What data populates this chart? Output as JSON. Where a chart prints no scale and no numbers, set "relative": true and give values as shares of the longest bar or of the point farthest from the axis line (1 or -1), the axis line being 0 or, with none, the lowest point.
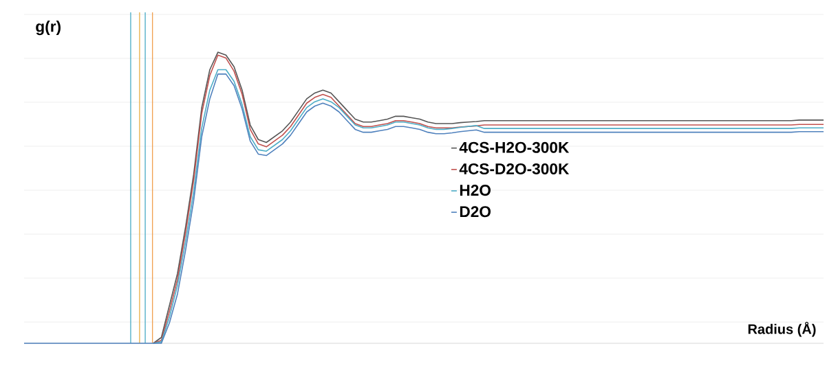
{
  "chart_data": {
    "type": "line",
    "ylabel": "g(r)",
    "xlabel": "Radius (Å)",
    "relative": true,
    "categories": [
      null,
      null,
      null,
      null,
      null,
      null,
      null,
      null,
      null,
      null,
      null,
      null,
      null,
      null,
      null,
      null,
      null,
      null,
      null,
      null,
      null,
      null,
      null,
      null,
      null,
      null,
      null,
      null,
      null,
      null,
      null,
      null,
      null,
      null,
      null,
      null,
      null,
      null,
      null,
      null,
      null,
      null,
      null,
      null,
      null,
      null,
      null,
      null,
      null,
      null,
      null,
      null,
      null,
      null,
      null,
      null,
      null,
      null,
      null,
      null,
      null,
      null,
      null,
      null,
      null,
      null,
      null,
      null,
      null,
      null,
      null,
      null,
      null,
      null,
      null,
      null,
      null,
      null,
      null,
      null,
      null,
      null,
      null,
      null,
      null,
      null,
      null,
      null,
      null,
      null,
      null,
      null,
      null,
      null,
      null,
      null,
      null,
      null,
      null,
      null
    ],
    "series": [
      {
        "name": "4CS-H2O-300K",
        "color": "#555555",
        "values": [
          null,
          null,
          null,
          null,
          null,
          null,
          null,
          null,
          null,
          null,
          null,
          null,
          null,
          null,
          null,
          null,
          0,
          0.02,
          0.13,
          0.24,
          0.4,
          0.58,
          0.81,
          0.94,
          1.0,
          0.99,
          0.95,
          0.87,
          0.75,
          0.7,
          0.69,
          0.71,
          0.73,
          0.76,
          0.8,
          0.84,
          0.86,
          0.87,
          0.86,
          0.83,
          0.8,
          0.77,
          0.76,
          0.76,
          0.765,
          0.77,
          0.78,
          0.78,
          0.775,
          0.77,
          0.76,
          0.755,
          0.755,
          0.755,
          0.758,
          0.76,
          0.762,
          0.765,
          0.765,
          0.765,
          0.765,
          0.765,
          0.765,
          0.765,
          0.765,
          0.765,
          0.765,
          0.765,
          0.765,
          0.765,
          0.765,
          0.765,
          0.765,
          0.765,
          0.765,
          0.765,
          0.765,
          0.765,
          0.765,
          0.765,
          0.765,
          0.765,
          0.765,
          0.765,
          0.765,
          0.765,
          0.765,
          0.765,
          0.765,
          0.765,
          0.765,
          0.765,
          0.765,
          0.765,
          0.765,
          0.765,
          0.767,
          0.767,
          0.767,
          0.767
        ]
      },
      {
        "name": "4CS-D2O-300K",
        "color": "#c0504d",
        "values": [
          null,
          null,
          null,
          null,
          null,
          null,
          null,
          null,
          null,
          null,
          null,
          null,
          null,
          null,
          null,
          null,
          0,
          0.01,
          0.11,
          0.22,
          0.38,
          0.56,
          0.79,
          0.92,
          0.99,
          0.98,
          0.935,
          0.855,
          0.735,
          0.685,
          0.675,
          0.695,
          0.715,
          0.745,
          0.785,
          0.825,
          0.845,
          0.855,
          0.845,
          0.815,
          0.785,
          0.755,
          0.745,
          0.745,
          0.75,
          0.755,
          0.765,
          0.765,
          0.76,
          0.755,
          0.745,
          0.74,
          0.74,
          0.74,
          0.743,
          0.745,
          0.747,
          0.75,
          0.75,
          0.75,
          0.75,
          0.75,
          0.75,
          0.75,
          0.75,
          0.75,
          0.75,
          0.75,
          0.75,
          0.75,
          0.75,
          0.75,
          0.75,
          0.75,
          0.75,
          0.75,
          0.75,
          0.75,
          0.75,
          0.75,
          0.75,
          0.75,
          0.75,
          0.75,
          0.75,
          0.75,
          0.75,
          0.75,
          0.75,
          0.75,
          0.75,
          0.75,
          0.75,
          0.75,
          0.75,
          0.75,
          0.752,
          0.752,
          0.752,
          0.752
        ]
      },
      {
        "name": "H2O",
        "color": "#4bacc6",
        "values": [
          null,
          null,
          null,
          null,
          null,
          null,
          null,
          null,
          null,
          null,
          null,
          null,
          null,
          null,
          null,
          null,
          0,
          0.005,
          0.09,
          0.2,
          0.35,
          0.52,
          0.74,
          0.87,
          0.94,
          0.94,
          0.9,
          0.82,
          0.71,
          0.665,
          0.66,
          0.68,
          0.7,
          0.73,
          0.77,
          0.81,
          0.83,
          0.84,
          0.83,
          0.81,
          0.78,
          0.75,
          0.74,
          0.74,
          0.745,
          0.75,
          0.76,
          0.76,
          0.755,
          0.75,
          0.74,
          0.735,
          0.735,
          0.738,
          0.742,
          0.745,
          0.748,
          0.738,
          0.738,
          0.738,
          0.738,
          0.738,
          0.738,
          0.738,
          0.738,
          0.738,
          0.738,
          0.738,
          0.738,
          0.738,
          0.738,
          0.738,
          0.738,
          0.738,
          0.738,
          0.738,
          0.738,
          0.738,
          0.738,
          0.738,
          0.738,
          0.738,
          0.738,
          0.738,
          0.738,
          0.738,
          0.738,
          0.738,
          0.738,
          0.738,
          0.738,
          0.738,
          0.738,
          0.738,
          0.738,
          0.738,
          0.74,
          0.74,
          0.74,
          0.74
        ]
      },
      {
        "name": "D2O",
        "color": "#4f81bd",
        "values": [
          0,
          0,
          0,
          0,
          0,
          0,
          0,
          0,
          0,
          0,
          0,
          0,
          0,
          0,
          0,
          0,
          0,
          0,
          0.07,
          0.17,
          0.32,
          0.49,
          0.71,
          0.84,
          0.925,
          0.925,
          0.885,
          0.805,
          0.695,
          0.65,
          0.645,
          0.665,
          0.685,
          0.715,
          0.755,
          0.795,
          0.815,
          0.825,
          0.815,
          0.795,
          0.765,
          0.735,
          0.725,
          0.725,
          0.73,
          0.735,
          0.745,
          0.745,
          0.74,
          0.735,
          0.725,
          0.72,
          0.72,
          0.723,
          0.727,
          0.73,
          0.733,
          0.725,
          0.725,
          0.725,
          0.725,
          0.725,
          0.725,
          0.725,
          0.725,
          0.725,
          0.725,
          0.725,
          0.725,
          0.725,
          0.725,
          0.725,
          0.725,
          0.725,
          0.725,
          0.725,
          0.725,
          0.725,
          0.725,
          0.725,
          0.725,
          0.725,
          0.725,
          0.725,
          0.725,
          0.725,
          0.725,
          0.725,
          0.725,
          0.725,
          0.725,
          0.725,
          0.725,
          0.725,
          0.725,
          0.725,
          0.727,
          0.727,
          0.727,
          0.727
        ]
      }
    ],
    "grid": "y",
    "legend": "right",
    "line_style": "solid",
    "marker": "none"
  }
}
